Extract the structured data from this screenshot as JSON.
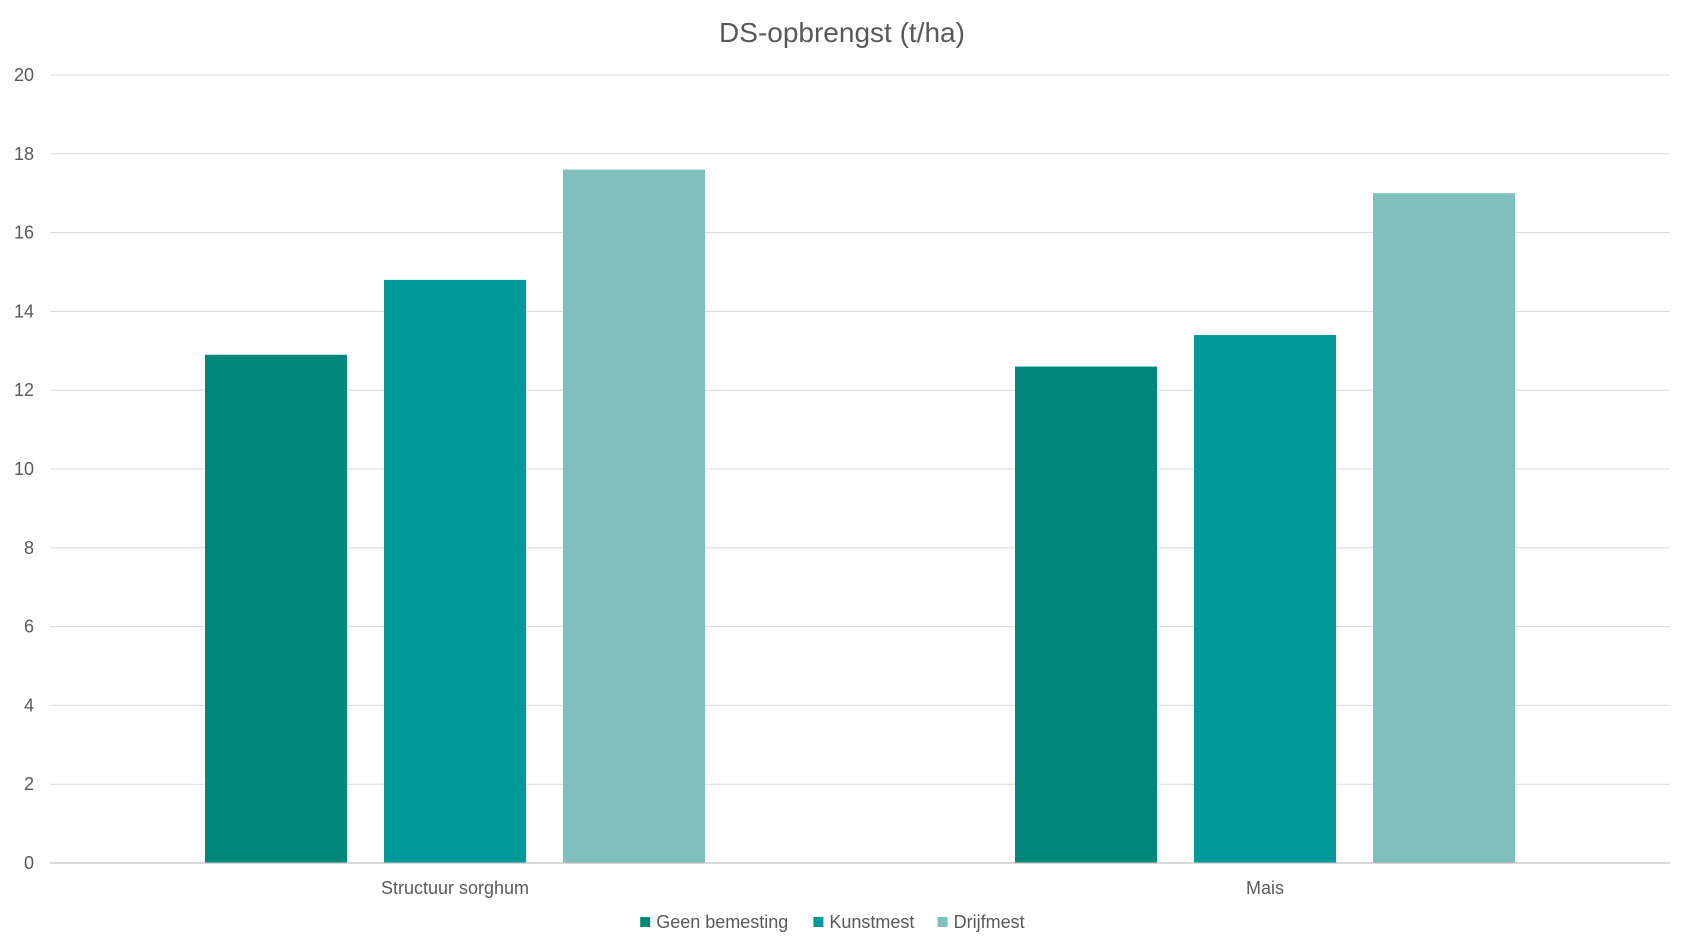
{
  "chart_data": {
    "type": "bar",
    "title": "DS-opbrengst (t/ha)",
    "xlabel": "",
    "ylabel": "",
    "categories": [
      "Structuur sorghum",
      "Mais"
    ],
    "series": [
      {
        "name": "Geen bemesting",
        "values": [
          12.9,
          12.6
        ],
        "color": "#00897b"
      },
      {
        "name": "Kunstmest",
        "values": [
          14.8,
          13.4
        ],
        "color": "#009999"
      },
      {
        "name": "Drijfmest",
        "values": [
          17.6,
          17.0
        ],
        "color": "#7fbfbc"
      }
    ],
    "ylim": [
      0,
      20
    ],
    "yticks": [
      0,
      2,
      4,
      6,
      8,
      10,
      12,
      14,
      16,
      18,
      20
    ],
    "grid": true,
    "legend_position": "bottom"
  }
}
